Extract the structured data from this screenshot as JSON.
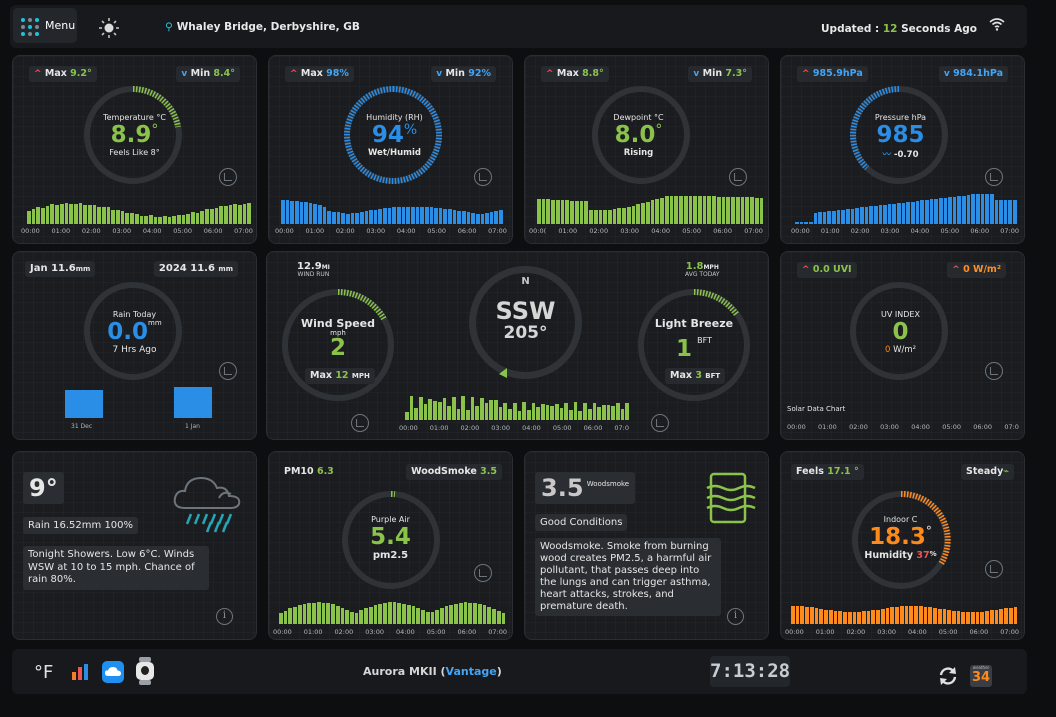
{
  "header": {
    "menu_label": "Menu",
    "location": "Whaley Bridge, Derbyshire, GB",
    "updated_prefix": "Updated : ",
    "updated_value": "12",
    "updated_suffix": " Seconds Ago"
  },
  "temperature": {
    "max_label": "Max",
    "max_value": "9.2°",
    "min_label": "Min",
    "min_value": "8.4°",
    "title": "Temperature °C",
    "value": "8.9",
    "unit": "°",
    "feels": "Feels Like 8°",
    "ticks": [
      "00:00",
      "01:00",
      "02:00",
      "03:00",
      "04:00",
      "05:00",
      "06:00",
      "07:00"
    ]
  },
  "humidity": {
    "max_label": "Max",
    "max_value": "98%",
    "min_label": "Min",
    "min_value": "92%",
    "title": "Humidity (RH)",
    "value": "94",
    "unit": "%",
    "status": "Wet/Humid",
    "ticks": [
      "00:00",
      "01:00",
      "02:00",
      "03:00",
      "04:00",
      "05:00",
      "06:00",
      "07:00"
    ]
  },
  "dewpoint": {
    "max_label": "Max",
    "max_value": "8.8°",
    "min_label": "Min",
    "min_value": "7.3°",
    "title": "Dewpoint °C",
    "value": "8.0",
    "unit": "°",
    "status": "Rising",
    "ticks": [
      "00:0(",
      "01:00",
      "02:00",
      "03:00",
      "04:00",
      "05:00",
      "06:00",
      "07:00"
    ]
  },
  "pressure": {
    "max_value": "985.9hPa",
    "min_value": "984.1hPa",
    "title": "Pressure hPa",
    "value": "985",
    "trend": "-0.70",
    "ticks": [
      "00:00",
      "01:00",
      "02:00",
      "03:00",
      "04:00",
      "05:00",
      "06:00",
      "07:00"
    ]
  },
  "rain": {
    "month_label": "Jan 11.6",
    "month_unit": "mm",
    "year_label": "2024 11.6",
    "year_unit": "mm",
    "title": "Rain Today",
    "value": "0.0",
    "unit": "mm",
    "ago": "7 Hrs Ago",
    "bar_labels": [
      "31 Dec",
      "1 Jan"
    ]
  },
  "wind": {
    "run_value": "12.9",
    "run_unit": "MI",
    "run_label": "WIND RUN",
    "speed_title": "Wind Speed",
    "speed_unit": "mph",
    "speed_value": "2",
    "max_label": "Max",
    "max_value": "12",
    "max_unit": "MPH",
    "compass_n": "N",
    "direction": "SSW",
    "degrees": "205°",
    "avg_value": "1.8",
    "avg_unit": "MPH",
    "avg_label": "AVG TODAY",
    "beaufort_title": "Light Breeze",
    "beaufort_value": "1",
    "beaufort_unit": "BFT",
    "bft_max_label": "Max",
    "bft_max_value": "3",
    "bft_max_unit": "BFT",
    "ticks": [
      "00:00",
      "01:00",
      "02:00",
      "03:00",
      "04:00",
      "05:00",
      "06:00",
      "07:0"
    ]
  },
  "uv": {
    "uvi_value": "0.0 UVI",
    "solar_value": "0 W/m²",
    "title": "UV INDEX",
    "value": "0",
    "solar_sub_value": "0",
    "solar_sub_unit": " W/m²",
    "chart_label": "Solar Data Chart",
    "ticks": [
      "00:00",
      "01:00",
      "02:00",
      "03:00",
      "04:00",
      "05:00",
      "06:00",
      "07:0"
    ]
  },
  "forecast": {
    "temp": "9°",
    "rain": "Rain 16.52mm 100%",
    "text": "Tonight Showers. Low 6°C. Winds WSW at 10 to 15 mph. Chance of rain 80%."
  },
  "air": {
    "pm10_label": "PM10",
    "pm10_value": "6.3",
    "ws_label": "WoodSmoke",
    "ws_value": "3.5",
    "title": "Purple Air",
    "value": "5.4",
    "unit": "pm2.5",
    "ticks": [
      "00:00",
      "01:00",
      "02:00",
      "03:00",
      "04:00",
      "05:00",
      "06:00",
      "07:00"
    ]
  },
  "woodsmoke": {
    "value": "3.5",
    "label": "Woodsmoke",
    "condition": "Good Conditions",
    "text": "Woodsmoke. Smoke from burning wood creates PM2.5, a harmful air pollutant, that passes deep into the lungs and can trigger asthma, heart attacks, strokes, and premature death."
  },
  "indoor": {
    "feels_label": "Feels",
    "feels_value": "17.1 °",
    "steady_label": "Steady",
    "title": "Indoor C",
    "value": "18.3",
    "unit": "°",
    "hum_label": "Humidity",
    "hum_value": "37",
    "hum_unit": "%",
    "ticks": [
      "00:00",
      "01:00",
      "02:00",
      "03:00",
      "04:00",
      "05:00",
      "06:00",
      "07:00"
    ]
  },
  "footer": {
    "unit_toggle": "°F",
    "station_prefix": "Aurora MKII (",
    "station_link": "Vantage",
    "station_suffix": ")",
    "clock": "7:13:28",
    "calendar_day": "34",
    "calendar_month": "weather"
  },
  "colors": {
    "green": "#8bc34a",
    "blue": "#2b8ee6",
    "orange": "#ff8a1c",
    "red": "#ef5350"
  }
}
